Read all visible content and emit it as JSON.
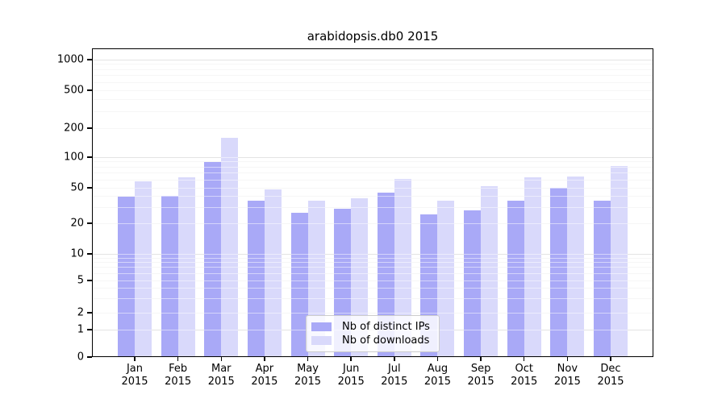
{
  "title": "arabidopsis.db0 2015",
  "chart_data": {
    "type": "bar",
    "title": "arabidopsis.db0 2015",
    "categories": [
      "Jan",
      "Feb",
      "Mar",
      "Apr",
      "May",
      "Jun",
      "Jul",
      "Aug",
      "Sep",
      "Oct",
      "Nov",
      "Dec"
    ],
    "year": "2015",
    "series": [
      {
        "name": "Nb of distinct IPs",
        "color": "#a9a9f7",
        "values": [
          40,
          41,
          89,
          36,
          26,
          29,
          44,
          25,
          28,
          36,
          50,
          36
        ]
      },
      {
        "name": "Nb of downloads",
        "color": "#d9d9fb",
        "values": [
          58,
          63,
          158,
          48,
          36,
          38,
          61,
          36,
          52,
          63,
          64,
          82
        ]
      }
    ],
    "xlabel": "",
    "ylabel": "",
    "y_ticks": [
      1000,
      500,
      200,
      100,
      50,
      20,
      10,
      5,
      2,
      1,
      0
    ],
    "y_scale": "log",
    "ylim": [
      0,
      1000
    ],
    "grid": true,
    "legend_position": "bottom-center-inside",
    "colors": {
      "major_gridline": "#c6c6c6",
      "minor_gridline": "#ededed",
      "axis": "#000000",
      "background": "#ffffff"
    }
  }
}
